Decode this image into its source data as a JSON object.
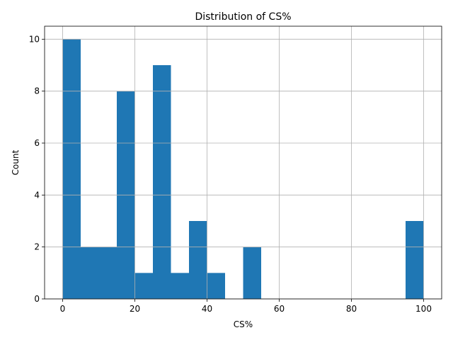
{
  "chart_data": {
    "type": "histogram",
    "title": "Distribution of CS%",
    "xlabel": "CS%",
    "ylabel": "Count",
    "bins": [
      0,
      5,
      10,
      15,
      20,
      25,
      30,
      35,
      40,
      45,
      50,
      55,
      60,
      65,
      70,
      75,
      80,
      85,
      90,
      95,
      100
    ],
    "values": [
      10,
      2,
      2,
      8,
      1,
      9,
      1,
      3,
      1,
      0,
      2,
      0,
      0,
      0,
      0,
      0,
      0,
      0,
      0,
      3
    ],
    "color": "#1f77b4",
    "xlim": [
      -5,
      105
    ],
    "xticks": [
      0,
      20,
      40,
      60,
      80,
      100
    ],
    "ylim": [
      0,
      10.5
    ],
    "yticks": [
      0,
      2,
      4,
      6,
      8,
      10
    ],
    "grid": true
  }
}
